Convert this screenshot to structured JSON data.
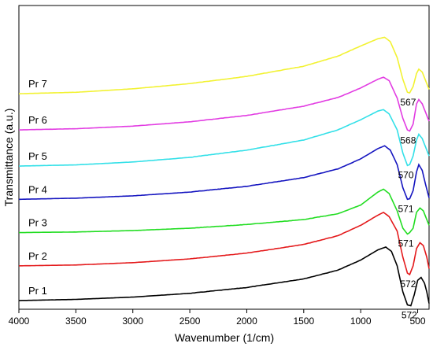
{
  "chart_data": {
    "type": "line",
    "title": "",
    "xlabel": "Wavenumber (1/cm)",
    "ylabel": "Transmittance (a.u.)",
    "x_reversed": true,
    "xlim": [
      4000,
      400
    ],
    "ylim": [
      0,
      105
    ],
    "x_ticks": [
      4000,
      3500,
      3000,
      2500,
      2000,
      1500,
      1000,
      500
    ],
    "x_tick_labels": [
      "4000",
      "3500",
      "3000",
      "2500",
      "2000",
      "1500",
      "1000",
      "500"
    ],
    "y_ticks_visible": false,
    "grid": false,
    "series": [
      {
        "name": "Pr 1",
        "color": "#000000",
        "peak": "572",
        "points": [
          [
            4000,
            3
          ],
          [
            3500,
            3.4
          ],
          [
            3000,
            4.2
          ],
          [
            2500,
            5.5
          ],
          [
            2000,
            7.5
          ],
          [
            1500,
            10.5
          ],
          [
            1200,
            13.5
          ],
          [
            1000,
            17
          ],
          [
            850,
            20.5
          ],
          [
            780,
            21.5
          ],
          [
            730,
            20
          ],
          [
            680,
            15
          ],
          [
            630,
            6
          ],
          [
            590,
            1.5
          ],
          [
            560,
            1.2
          ],
          [
            530,
            5
          ],
          [
            500,
            10
          ],
          [
            470,
            11
          ],
          [
            440,
            9
          ],
          [
            420,
            6
          ],
          [
            400,
            2
          ]
        ]
      },
      {
        "name": "Pr 2",
        "color": "#e41a1c",
        "peak": "572",
        "points": [
          [
            4000,
            15
          ],
          [
            3500,
            15.3
          ],
          [
            3000,
            16.1
          ],
          [
            2500,
            17.4
          ],
          [
            2000,
            19.4
          ],
          [
            1500,
            22.4
          ],
          [
            1200,
            25.4
          ],
          [
            1000,
            29
          ],
          [
            850,
            32.5
          ],
          [
            800,
            33.5
          ],
          [
            750,
            32
          ],
          [
            680,
            27
          ],
          [
            630,
            18
          ],
          [
            590,
            12.5
          ],
          [
            570,
            12
          ],
          [
            540,
            15
          ],
          [
            510,
            21
          ],
          [
            480,
            23
          ],
          [
            450,
            22
          ],
          [
            420,
            18
          ],
          [
            400,
            14
          ]
        ]
      },
      {
        "name": "Pr 3",
        "color": "#22dd22",
        "peak": "571",
        "points": [
          [
            4000,
            26.5
          ],
          [
            3500,
            26.7
          ],
          [
            3000,
            27.2
          ],
          [
            2500,
            28
          ],
          [
            2000,
            29.3
          ],
          [
            1500,
            31
          ],
          [
            1200,
            33
          ],
          [
            1000,
            36
          ],
          [
            850,
            40.5
          ],
          [
            800,
            41.5
          ],
          [
            750,
            40
          ],
          [
            680,
            34
          ],
          [
            630,
            28
          ],
          [
            590,
            26
          ],
          [
            570,
            26.5
          ],
          [
            540,
            28
          ],
          [
            510,
            33.5
          ],
          [
            480,
            35
          ],
          [
            450,
            34
          ],
          [
            420,
            31
          ],
          [
            400,
            29
          ]
        ]
      },
      {
        "name": "Pr 4",
        "color": "#1515c0",
        "peak": "571",
        "points": [
          [
            4000,
            38
          ],
          [
            3500,
            38.4
          ],
          [
            3000,
            39.2
          ],
          [
            2500,
            40.5
          ],
          [
            2000,
            42.5
          ],
          [
            1500,
            45.5
          ],
          [
            1200,
            48.5
          ],
          [
            1000,
            52
          ],
          [
            850,
            55.5
          ],
          [
            790,
            56.5
          ],
          [
            740,
            55
          ],
          [
            680,
            50
          ],
          [
            630,
            42
          ],
          [
            590,
            38
          ],
          [
            570,
            38.2
          ],
          [
            540,
            41
          ],
          [
            510,
            47.5
          ],
          [
            490,
            50
          ],
          [
            460,
            48
          ],
          [
            430,
            43
          ],
          [
            400,
            38.5
          ]
        ]
      },
      {
        "name": "Pr 5",
        "color": "#33e0e8",
        "peak": "570",
        "points": [
          [
            4000,
            49.5
          ],
          [
            3500,
            49.9
          ],
          [
            3000,
            50.9
          ],
          [
            2500,
            52.5
          ],
          [
            2000,
            55
          ],
          [
            1500,
            58.5
          ],
          [
            1200,
            62
          ],
          [
            1000,
            65.5
          ],
          [
            850,
            68.5
          ],
          [
            800,
            69
          ],
          [
            750,
            67.5
          ],
          [
            680,
            62
          ],
          [
            630,
            54
          ],
          [
            590,
            49.7
          ],
          [
            570,
            50
          ],
          [
            540,
            53
          ],
          [
            510,
            58.5
          ],
          [
            490,
            60.5
          ],
          [
            460,
            59
          ],
          [
            430,
            56
          ],
          [
            400,
            53
          ]
        ]
      },
      {
        "name": "Pr 6",
        "color": "#e23ce2",
        "peak": "568",
        "points": [
          [
            4000,
            62
          ],
          [
            3500,
            62.4
          ],
          [
            3000,
            63.3
          ],
          [
            2500,
            64.8
          ],
          [
            2000,
            67
          ],
          [
            1500,
            70.2
          ],
          [
            1200,
            73.2
          ],
          [
            1000,
            76.5
          ],
          [
            850,
            79.5
          ],
          [
            800,
            80.2
          ],
          [
            750,
            79
          ],
          [
            680,
            73
          ],
          [
            630,
            66
          ],
          [
            590,
            62
          ],
          [
            570,
            61.6
          ],
          [
            540,
            64
          ],
          [
            510,
            71
          ],
          [
            490,
            72.5
          ],
          [
            460,
            71
          ],
          [
            430,
            68
          ],
          [
            400,
            65
          ]
        ]
      },
      {
        "name": "Pr 7",
        "color": "#f2f232",
        "peak": "567",
        "points": [
          [
            4000,
            74.5
          ],
          [
            3500,
            75
          ],
          [
            3000,
            76.2
          ],
          [
            2500,
            78
          ],
          [
            2000,
            80.5
          ],
          [
            1500,
            84
          ],
          [
            1200,
            87.5
          ],
          [
            1000,
            91
          ],
          [
            850,
            93.5
          ],
          [
            790,
            94
          ],
          [
            740,
            92.5
          ],
          [
            680,
            87
          ],
          [
            630,
            79.5
          ],
          [
            590,
            75
          ],
          [
            570,
            74.8
          ],
          [
            540,
            77
          ],
          [
            510,
            81.5
          ],
          [
            490,
            83
          ],
          [
            460,
            82
          ],
          [
            430,
            79
          ],
          [
            400,
            76
          ]
        ]
      }
    ]
  }
}
